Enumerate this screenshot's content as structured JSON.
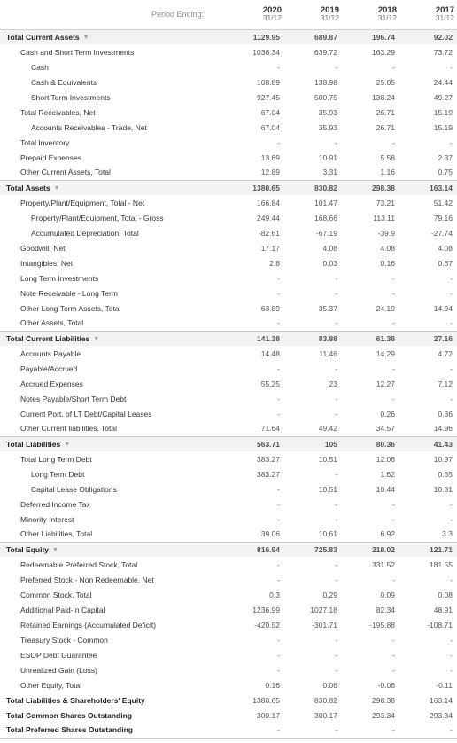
{
  "header": {
    "period_label": "Period Ending:",
    "columns": [
      {
        "year": "2020",
        "date": "31/12"
      },
      {
        "year": "2019",
        "date": "31/12"
      },
      {
        "year": "2018",
        "date": "31/12"
      },
      {
        "year": "2017",
        "date": "31/12"
      }
    ]
  },
  "icons": {
    "expand": "chevron-down-icon"
  },
  "rows": [
    {
      "label": "Total Current Assets",
      "kind": "section",
      "caret": true,
      "values": [
        "1129.95",
        "689.87",
        "196.74",
        "92.02"
      ]
    },
    {
      "label": "Cash and Short Term Investments",
      "kind": "l1",
      "values": [
        "1036.34",
        "639.72",
        "163.29",
        "73.72"
      ]
    },
    {
      "label": "Cash",
      "kind": "l2",
      "values": [
        "-",
        "-",
        "-",
        "-"
      ]
    },
    {
      "label": "Cash & Equivalents",
      "kind": "l2",
      "values": [
        "108.89",
        "138.98",
        "25.05",
        "24.44"
      ]
    },
    {
      "label": "Short Term Investments",
      "kind": "l2",
      "values": [
        "927.45",
        "500.75",
        "138.24",
        "49.27"
      ]
    },
    {
      "label": "Total Receivables, Net",
      "kind": "l1",
      "values": [
        "67.04",
        "35.93",
        "26.71",
        "15.19"
      ]
    },
    {
      "label": "Accounts Receivables - Trade, Net",
      "kind": "l2",
      "values": [
        "67.04",
        "35.93",
        "26.71",
        "15.19"
      ]
    },
    {
      "label": "Total Inventory",
      "kind": "l1",
      "values": [
        "-",
        "-",
        "-",
        "-"
      ]
    },
    {
      "label": "Prepaid Expenses",
      "kind": "l1",
      "values": [
        "13.69",
        "10.91",
        "5.58",
        "2.37"
      ]
    },
    {
      "label": "Other Current Assets, Total",
      "kind": "l1",
      "values": [
        "12.89",
        "3.31",
        "1.16",
        "0.75"
      ]
    },
    {
      "label": "Total Assets",
      "kind": "section",
      "caret": true,
      "values": [
        "1380.65",
        "830.82",
        "298.38",
        "163.14"
      ]
    },
    {
      "label": "Property/Plant/Equipment, Total - Net",
      "kind": "l1",
      "values": [
        "166.84",
        "101.47",
        "73.21",
        "51.42"
      ]
    },
    {
      "label": "Property/Plant/Equipment, Total - Gross",
      "kind": "l2",
      "values": [
        "249.44",
        "168.66",
        "113.11",
        "79.16"
      ]
    },
    {
      "label": "Accumulated Depreciation, Total",
      "kind": "l2",
      "values": [
        "-82.61",
        "-67.19",
        "-39.9",
        "-27.74"
      ]
    },
    {
      "label": "Goodwill, Net",
      "kind": "l1",
      "values": [
        "17.17",
        "4.08",
        "4.08",
        "4.08"
      ]
    },
    {
      "label": "Intangibles, Net",
      "kind": "l1",
      "values": [
        "2.8",
        "0.03",
        "0.16",
        "0.67"
      ]
    },
    {
      "label": "Long Term Investments",
      "kind": "l1",
      "values": [
        "-",
        "-",
        "-",
        "-"
      ]
    },
    {
      "label": "Note Receivable - Long Term",
      "kind": "l1",
      "values": [
        "-",
        "-",
        "-",
        "-"
      ]
    },
    {
      "label": "Other Long Term Assets, Total",
      "kind": "l1",
      "values": [
        "63.89",
        "35.37",
        "24.19",
        "14.94"
      ]
    },
    {
      "label": "Other Assets, Total",
      "kind": "l1",
      "values": [
        "-",
        "-",
        "-",
        "-"
      ]
    },
    {
      "label": "Total Current Liabilities",
      "kind": "section",
      "caret": true,
      "values": [
        "141.38",
        "83.88",
        "61.38",
        "27.16"
      ]
    },
    {
      "label": "Accounts Payable",
      "kind": "l1",
      "values": [
        "14.48",
        "11.46",
        "14.29",
        "4.72"
      ]
    },
    {
      "label": "Payable/Accrued",
      "kind": "l1",
      "values": [
        "-",
        "-",
        "-",
        "-"
      ]
    },
    {
      "label": "Accrued Expenses",
      "kind": "l1",
      "values": [
        "55.25",
        "23",
        "12.27",
        "7.12"
      ]
    },
    {
      "label": "Notes Payable/Short Term Debt",
      "kind": "l1",
      "values": [
        "-",
        "-",
        "-",
        "-"
      ]
    },
    {
      "label": "Current Port. of LT Debt/Capital Leases",
      "kind": "l1",
      "values": [
        "-",
        "-",
        "0.26",
        "0.36"
      ]
    },
    {
      "label": "Other Current liabilities, Total",
      "kind": "l1",
      "values": [
        "71.64",
        "49.42",
        "34.57",
        "14.96"
      ]
    },
    {
      "label": "Total Liabilities",
      "kind": "section",
      "caret": true,
      "values": [
        "563.71",
        "105",
        "80.36",
        "41.43"
      ]
    },
    {
      "label": "Total Long Term Debt",
      "kind": "l1",
      "values": [
        "383.27",
        "10.51",
        "12.06",
        "10.97"
      ]
    },
    {
      "label": "Long Term Debt",
      "kind": "l2",
      "values": [
        "383.27",
        "-",
        "1.62",
        "0.65"
      ]
    },
    {
      "label": "Capital Lease Obligations",
      "kind": "l2",
      "values": [
        "-",
        "10.51",
        "10.44",
        "10.31"
      ]
    },
    {
      "label": "Deferred Income Tax",
      "kind": "l1",
      "values": [
        "-",
        "-",
        "-",
        "-"
      ]
    },
    {
      "label": "Minority Interest",
      "kind": "l1",
      "values": [
        "-",
        "-",
        "-",
        "-"
      ]
    },
    {
      "label": "Other Liabilities, Total",
      "kind": "l1",
      "values": [
        "39.06",
        "10.61",
        "6.92",
        "3.3"
      ]
    },
    {
      "label": "Total Equity",
      "kind": "section",
      "caret": true,
      "values": [
        "816.94",
        "725.83",
        "218.02",
        "121.71"
      ]
    },
    {
      "label": "Redeemable Preferred Stock, Total",
      "kind": "l1",
      "values": [
        "-",
        "-",
        "331.52",
        "181.55"
      ]
    },
    {
      "label": "Preferred Stock - Non Redeemable, Net",
      "kind": "l1",
      "values": [
        "-",
        "-",
        "-",
        "-"
      ]
    },
    {
      "label": "Common Stock, Total",
      "kind": "l1",
      "values": [
        "0.3",
        "0.29",
        "0.09",
        "0.08"
      ]
    },
    {
      "label": "Additional Paid-In Capital",
      "kind": "l1",
      "values": [
        "1236.99",
        "1027.18",
        "82.34",
        "48.91"
      ]
    },
    {
      "label": "Retained Earnings (Accumulated Deficit)",
      "kind": "l1",
      "values": [
        "-420.52",
        "-301.71",
        "-195.88",
        "-108.71"
      ]
    },
    {
      "label": "Treasury Stock - Common",
      "kind": "l1",
      "values": [
        "-",
        "-",
        "-",
        "-"
      ]
    },
    {
      "label": "ESOP Debt Guarantee",
      "kind": "l1",
      "values": [
        "-",
        "-",
        "-",
        "-"
      ]
    },
    {
      "label": "Unrealized Gain (Loss)",
      "kind": "l1",
      "values": [
        "-",
        "-",
        "-",
        "-"
      ]
    },
    {
      "label": "Other Equity, Total",
      "kind": "l1",
      "values": [
        "0.16",
        "0.06",
        "-0.06",
        "-0.11"
      ]
    },
    {
      "label": "Total Liabilities & Shareholders' Equity",
      "kind": "total",
      "values": [
        "1380.65",
        "830.82",
        "298.38",
        "163.14"
      ]
    },
    {
      "label": "Total Common Shares Outstanding",
      "kind": "total",
      "values": [
        "300.17",
        "300.17",
        "293.34",
        "293.34"
      ]
    },
    {
      "label": "Total Preferred Shares Outstanding",
      "kind": "total",
      "last": true,
      "values": [
        "-",
        "-",
        "-",
        "-"
      ]
    }
  ]
}
